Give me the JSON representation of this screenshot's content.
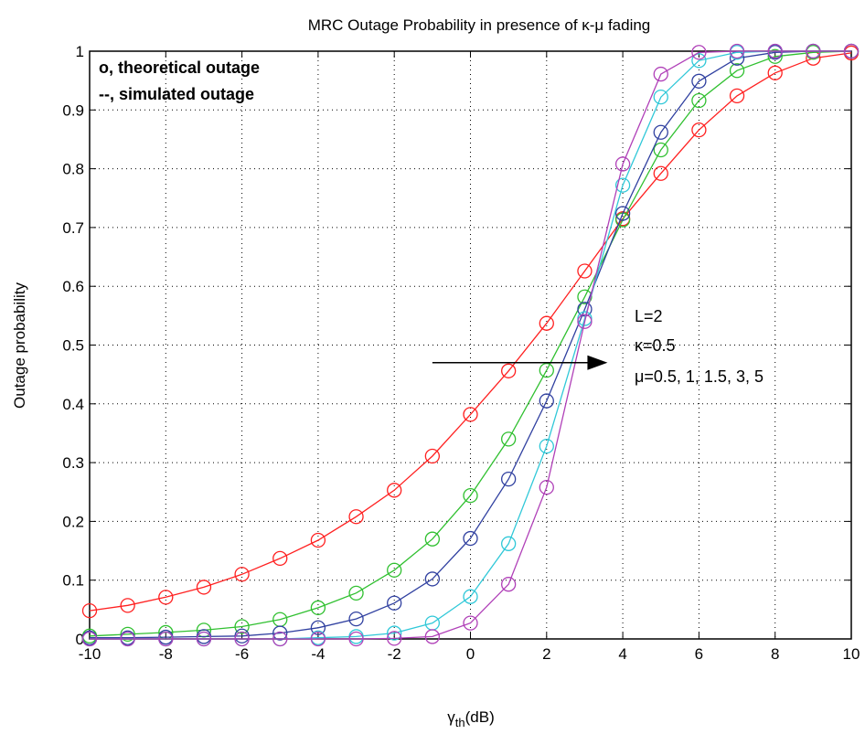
{
  "chart_data": {
    "type": "line",
    "title": "MRC Outage Probability in presence of κ-μ fading",
    "xlabel": "γ",
    "xlabel_sub": "th",
    "xlabel_unit": "(dB)",
    "ylabel": "Outage probability",
    "xlim": [
      -10,
      10
    ],
    "ylim": [
      0,
      1
    ],
    "x_ticks": [
      -10,
      -8,
      -6,
      -4,
      -2,
      0,
      2,
      4,
      6,
      8,
      10
    ],
    "y_ticks": [
      0,
      0.1,
      0.2,
      0.3,
      0.4,
      0.5,
      0.6,
      0.7,
      0.8,
      0.9,
      1
    ],
    "grid": true,
    "x": [
      -10,
      -9,
      -8,
      -7,
      -6,
      -5,
      -4,
      -3,
      -2,
      -1,
      0,
      1,
      2,
      3,
      4,
      5,
      6,
      7,
      8,
      9,
      10
    ],
    "series": [
      {
        "color": "#ff2020",
        "values": [
          0.048,
          0.057,
          0.071,
          0.088,
          0.11,
          0.137,
          0.168,
          0.208,
          0.253,
          0.311,
          0.382,
          0.456,
          0.537,
          0.626,
          0.715,
          0.792,
          0.866,
          0.924,
          0.963,
          0.988,
          0.997
        ]
      },
      {
        "color": "#30c030",
        "values": [
          0.005,
          0.008,
          0.011,
          0.015,
          0.021,
          0.033,
          0.053,
          0.078,
          0.117,
          0.17,
          0.244,
          0.34,
          0.457,
          0.582,
          0.713,
          0.832,
          0.916,
          0.967,
          0.991,
          0.998,
          1.0
        ]
      },
      {
        "color": "#3040a0",
        "values": [
          0.002,
          0.002,
          0.003,
          0.004,
          0.005,
          0.01,
          0.019,
          0.034,
          0.061,
          0.102,
          0.171,
          0.272,
          0.405,
          0.561,
          0.724,
          0.862,
          0.949,
          0.988,
          0.998,
          1.0,
          1.0
        ]
      },
      {
        "color": "#30c8d8",
        "values": [
          0.0,
          0.0,
          0.0,
          0.0,
          0.0,
          0.0,
          0.002,
          0.004,
          0.01,
          0.027,
          0.072,
          0.162,
          0.328,
          0.545,
          0.772,
          0.922,
          0.984,
          0.998,
          1.0,
          1.0,
          1.0
        ]
      },
      {
        "color": "#b040b8",
        "values": [
          0.0,
          0.0,
          0.0,
          0.0,
          0.0,
          0.0,
          0.0,
          0.0,
          0.001,
          0.004,
          0.027,
          0.093,
          0.258,
          0.54,
          0.808,
          0.961,
          0.998,
          1.0,
          1.0,
          1.0,
          1.0
        ]
      }
    ],
    "legend_lines": [
      "o, theoretical outage",
      "--, simulated outage"
    ],
    "annotation_lines": [
      "L=2",
      "κ=0.5",
      "μ=0.5, 1, 1.5, 3, 5"
    ],
    "arrow": {
      "from": [
        -1,
        0.47
      ],
      "to": [
        3.6,
        0.47
      ]
    }
  }
}
